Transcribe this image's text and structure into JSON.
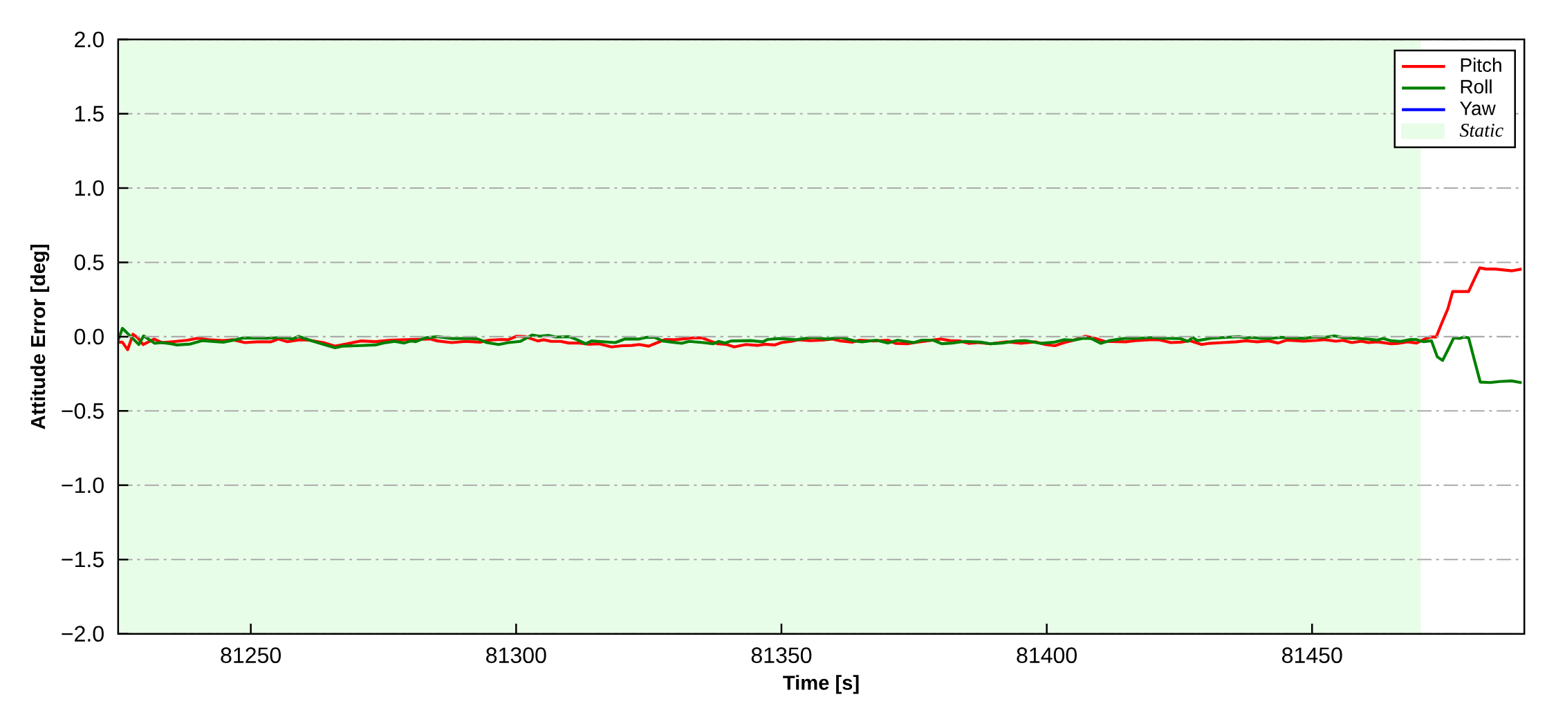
{
  "chart_data": {
    "type": "line",
    "xlabel": "Time [s]",
    "ylabel": "Attitude Error [deg]",
    "xlim": [
      81225,
      81490
    ],
    "ylim": [
      -2,
      2
    ],
    "xticks": [
      81250,
      81300,
      81350,
      81400,
      81450
    ],
    "yticks": [
      {
        "value": -2,
        "label": "−2.0"
      },
      {
        "value": -1.5,
        "label": "−1.5"
      },
      {
        "value": -1,
        "label": "−1.0"
      },
      {
        "value": -0.5,
        "label": "−0.5"
      },
      {
        "value": 0,
        "label": "0.0"
      },
      {
        "value": 0.5,
        "label": "0.5"
      },
      {
        "value": 1,
        "label": "1.0"
      },
      {
        "value": 1.5,
        "label": "1.5"
      },
      {
        "value": 2,
        "label": "2.0"
      }
    ],
    "grid": "y",
    "legend": "top right",
    "bands": [
      {
        "axis": "x",
        "from": 81225,
        "to": 81470.5,
        "label": "Static",
        "color": "#e8fde8"
      }
    ],
    "series": [
      {
        "name": "Pitch",
        "color": "#ff0000",
        "x": [
          81225.0,
          81225.8,
          81226.8,
          81227.8,
          81228.7,
          81229.7,
          81231.8,
          81233.2,
          81235.9,
          81238.1,
          81239.9,
          81242.2,
          81244.8,
          81246.6,
          81248.9,
          81251.1,
          81253.8,
          81255.2,
          81256.9,
          81259.2,
          81261.0,
          81263.7,
          81265.9,
          81268.1,
          81270.8,
          81273.5,
          81276.2,
          81278.9,
          81281.6,
          81283.8,
          81285.2,
          81287.9,
          81290.5,
          81293.2,
          81294.9,
          81297.2,
          81298.5,
          81300.1,
          81301.7,
          81304.1,
          81305.2,
          81306.6,
          81308.4,
          81309.9,
          81312.0,
          81313.8,
          81315.6,
          81318.0,
          81320.0,
          81321.8,
          81323.2,
          81325.0,
          81326.3,
          81328.1,
          81329.9,
          81331.2,
          81333.5,
          81335.0,
          81336.4,
          81338.0,
          81339.7,
          81341.1,
          81343.3,
          81345.6,
          81346.9,
          81348.7,
          81350.0,
          81351.8,
          81353.2,
          81355.4,
          81357.7,
          81359.5,
          81361.2,
          81363.4,
          81364.7,
          81367.4,
          81370.1,
          81371.5,
          81373.7,
          81375.5,
          81377.3,
          81380.0,
          81381.8,
          81383.6,
          81385.3,
          81387.1,
          81389.4,
          81392.5,
          81395.2,
          81397.9,
          81399.7,
          81401.5,
          81403.3,
          81405.1,
          81407.3,
          81409.1,
          81410.9,
          81414.9,
          81416.7,
          81419.4,
          81421.2,
          81423.4,
          81425.2,
          81427.0,
          81429.2,
          81430.6,
          81433.1,
          81435.7,
          81437.5,
          81439.7,
          81441.8,
          81443.6,
          81445.3,
          81448.4,
          81451.0,
          81452.3,
          81454.5,
          81455.8,
          81457.5,
          81459.3,
          81460.6,
          81462.3,
          81464.9,
          81466.2,
          81468.0,
          81469.7,
          81471.0,
          81472.3,
          81473.4,
          81474.5,
          81475.6,
          81476.5,
          81478.0,
          81479.5,
          81480.6,
          81481.6,
          81482.8,
          81484.5,
          81487.6,
          81489.5
        ],
        "values": [
          -0.037,
          -0.037,
          -0.088,
          0.016,
          -0.008,
          -0.053,
          -0.016,
          -0.04,
          -0.032,
          -0.024,
          -0.011,
          -0.021,
          -0.027,
          -0.021,
          -0.04,
          -0.035,
          -0.035,
          -0.016,
          -0.034,
          -0.021,
          -0.024,
          -0.04,
          -0.064,
          -0.048,
          -0.029,
          -0.034,
          -0.024,
          -0.021,
          -0.018,
          -0.016,
          -0.029,
          -0.04,
          -0.032,
          -0.037,
          -0.024,
          -0.019,
          -0.021,
          0.003,
          0,
          -0.029,
          -0.021,
          -0.032,
          -0.032,
          -0.043,
          -0.043,
          -0.051,
          -0.048,
          -0.069,
          -0.061,
          -0.059,
          -0.053,
          -0.064,
          -0.045,
          -0.019,
          -0.021,
          -0.016,
          -0.008,
          -0.008,
          -0.027,
          -0.048,
          -0.053,
          -0.069,
          -0.053,
          -0.059,
          -0.051,
          -0.056,
          -0.04,
          -0.032,
          -0.021,
          -0.027,
          -0.024,
          -0.016,
          -0.029,
          -0.037,
          -0.024,
          -0.029,
          -0.024,
          -0.045,
          -0.048,
          -0.037,
          -0.029,
          -0.016,
          -0.027,
          -0.029,
          -0.045,
          -0.04,
          -0.048,
          -0.035,
          -0.045,
          -0.035,
          -0.053,
          -0.061,
          -0.04,
          -0.024,
          0.003,
          -0.011,
          -0.032,
          -0.035,
          -0.027,
          -0.021,
          -0.021,
          -0.04,
          -0.037,
          -0.027,
          -0.053,
          -0.045,
          -0.04,
          -0.035,
          -0.028,
          -0.035,
          -0.028,
          -0.043,
          -0.023,
          -0.031,
          -0.025,
          -0.02,
          -0.031,
          -0.025,
          -0.04,
          -0.031,
          -0.04,
          -0.035,
          -0.048,
          -0.046,
          -0.035,
          -0.043,
          -0.02,
          -0.002,
          -0.002,
          0.096,
          0.188,
          0.304,
          0.304,
          0.304,
          0.389,
          0.463,
          0.455,
          0.455,
          0.443,
          0.455
        ]
      },
      {
        "name": "Roll",
        "color": "#008000",
        "x": [
          81225.0,
          81225.8,
          81227.4,
          81228.9,
          81229.8,
          81231.9,
          81233.2,
          81235.0,
          81236.1,
          81238.6,
          81240.8,
          81244.8,
          81247.1,
          81248.7,
          81252.9,
          81256.0,
          81257.8,
          81259.0,
          81261.4,
          81264.1,
          81265.9,
          81267.2,
          81269.9,
          81273.5,
          81274.9,
          81277.1,
          81278.9,
          81280.2,
          81281.1,
          81282.9,
          81285.2,
          81287.9,
          81291.4,
          81292.8,
          81294.5,
          81296.7,
          81298.5,
          81300.8,
          81303.0,
          81304.4,
          81306.1,
          81307.5,
          81310.0,
          81311.5,
          81313.1,
          81314.2,
          81318.7,
          81320.5,
          81323.2,
          81324.5,
          81326.1,
          81327.6,
          81329.4,
          81331.2,
          81332.6,
          81335.3,
          81337.1,
          81338.2,
          81339.3,
          81340.6,
          81344.2,
          81346.5,
          81347.4,
          81349.6,
          81352.7,
          81355.9,
          81358.6,
          81361.2,
          81363.8,
          81365.2,
          81367.9,
          81370.1,
          81371.9,
          81375.0,
          81376.4,
          81378.6,
          81380.2,
          81382.2,
          81384.5,
          81387.6,
          81389.4,
          81391.6,
          81394.3,
          81396.1,
          81398.8,
          81401.5,
          81403.3,
          81405.1,
          81406.9,
          81408.4,
          81410.2,
          81411.8,
          81414.5,
          81417.2,
          81420.3,
          81421.6,
          81425.2,
          81426.6,
          81427.5,
          81428.4,
          81431.0,
          81433.6,
          81436.2,
          81437.5,
          81438.6,
          81440.5,
          81442.3,
          81444.0,
          81446.2,
          81448.4,
          81450.5,
          81452.3,
          81454.2,
          81456.2,
          81458.4,
          81460.6,
          81462.3,
          81463.4,
          81464.9,
          81466.7,
          81468.4,
          81469.7,
          81471.0,
          81472.5,
          81473.6,
          81474.6,
          81475.7,
          81476.7,
          81477.8,
          81478.6,
          81479.5,
          81480.6,
          81481.7,
          81483.6,
          81485.4,
          81487.6,
          81489.5
        ],
        "values": [
          -0.024,
          0.056,
          0,
          -0.053,
          0.005,
          -0.045,
          -0.04,
          -0.048,
          -0.056,
          -0.05,
          -0.027,
          -0.037,
          -0.021,
          -0.008,
          -0.011,
          -0.005,
          -0.016,
          0.002,
          -0.027,
          -0.056,
          -0.075,
          -0.064,
          -0.061,
          -0.056,
          -0.043,
          -0.032,
          -0.043,
          -0.029,
          -0.034,
          -0.008,
          0,
          -0.013,
          -0.013,
          -0.016,
          -0.04,
          -0.053,
          -0.04,
          -0.032,
          0.011,
          0.003,
          0.008,
          -0.003,
          0,
          -0.021,
          -0.048,
          -0.029,
          -0.04,
          -0.016,
          -0.016,
          -0.005,
          -0.005,
          -0.029,
          -0.037,
          -0.045,
          -0.032,
          -0.04,
          -0.048,
          -0.032,
          -0.043,
          -0.029,
          -0.027,
          -0.035,
          -0.019,
          -0.013,
          -0.021,
          -0.005,
          -0.016,
          -0.005,
          -0.029,
          -0.035,
          -0.024,
          -0.043,
          -0.024,
          -0.04,
          -0.024,
          -0.024,
          -0.048,
          -0.043,
          -0.032,
          -0.037,
          -0.048,
          -0.043,
          -0.029,
          -0.027,
          -0.045,
          -0.037,
          -0.021,
          -0.024,
          -0.011,
          -0.013,
          -0.045,
          -0.027,
          -0.013,
          -0.011,
          -0.005,
          -0.011,
          -0.013,
          -0.032,
          -0.005,
          -0.027,
          -0.011,
          -0.005,
          0,
          -0.009,
          -0.005,
          -0.012,
          -0.012,
          -0.005,
          -0.008,
          -0.012,
          -0.002,
          -0.005,
          0.005,
          -0.009,
          -0.012,
          -0.017,
          -0.023,
          -0.012,
          -0.028,
          -0.032,
          -0.02,
          -0.02,
          -0.034,
          -0.028,
          -0.136,
          -0.16,
          -0.082,
          -0.008,
          -0.012,
          -0.003,
          -0.008,
          -0.159,
          -0.306,
          -0.309,
          -0.302,
          -0.298,
          -0.31
        ]
      },
      {
        "name": "Yaw",
        "color": "#0000ff"
      }
    ]
  }
}
